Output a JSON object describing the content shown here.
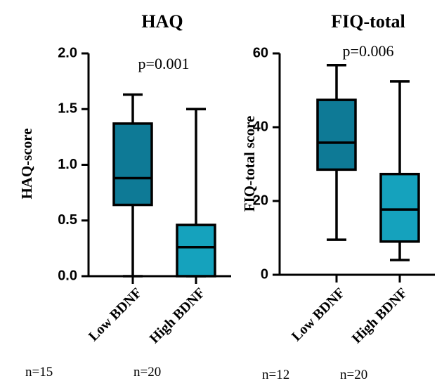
{
  "chart_data": [
    {
      "type": "box",
      "title": "HAQ",
      "ylabel": "HAQ-score",
      "ylim": [
        0,
        2.0
      ],
      "yticks": [
        "0.0",
        "0.5",
        "1.0",
        "1.5",
        "2.0"
      ],
      "annotation": "p=0.001",
      "boxes": [
        {
          "category": "Low BDNF",
          "min": 0.0,
          "q1": 0.64,
          "median": 0.88,
          "q3": 1.37,
          "max": 1.63,
          "n_label": "n=15",
          "color": "#0e7a96"
        },
        {
          "category": "High BDNF",
          "min": 0.0,
          "q1": 0.0,
          "median": 0.26,
          "q3": 0.46,
          "max": 1.5,
          "n_label": "n=20",
          "color": "#15a2bd"
        }
      ]
    },
    {
      "type": "box",
      "title": "FIQ-total",
      "ylabel": "FIQ-total score",
      "ylim": [
        0,
        60
      ],
      "yticks": [
        "0",
        "20",
        "40",
        "60"
      ],
      "annotation": "p=0.006",
      "boxes": [
        {
          "category": "Low BDNF",
          "min": 9.5,
          "q1": 28.5,
          "median": 35.8,
          "q3": 47.4,
          "max": 56.8,
          "n_label": "n=12",
          "color": "#0e7a96"
        },
        {
          "category": "High BDNF",
          "min": 4.0,
          "q1": 9.0,
          "median": 17.7,
          "q3": 27.3,
          "max": 52.4,
          "n_label": "n=20",
          "color": "#15a2bd"
        }
      ]
    }
  ]
}
